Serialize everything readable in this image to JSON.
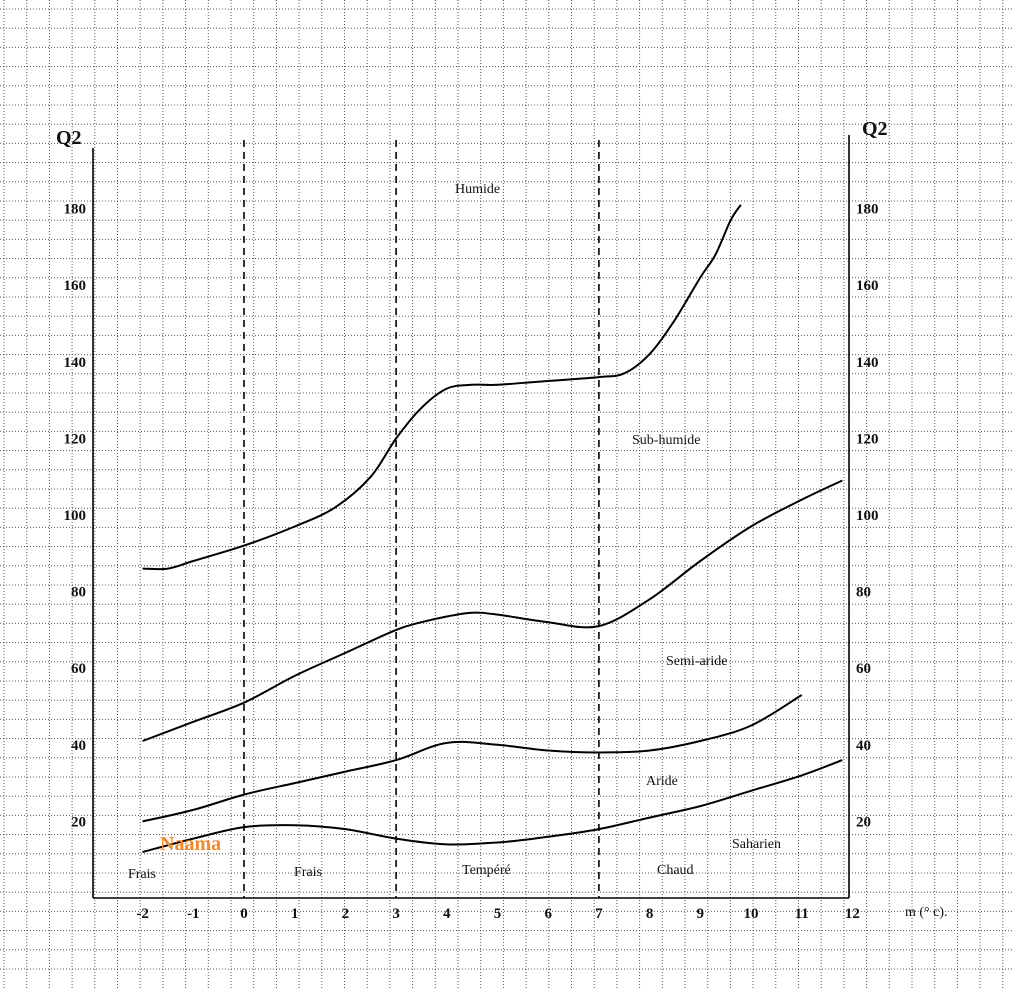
{
  "chart_data": {
    "type": "line",
    "title": "",
    "ylabel_left": "Q2",
    "ylabel_right": "Q2",
    "xlabel": "m (° c).",
    "xlim": [
      -2.5,
      12.2
    ],
    "ylim": [
      0,
      200
    ],
    "x_ticks": [
      "-2",
      "-1",
      "0",
      "1",
      "2",
      "3",
      "4",
      "5",
      "6",
      "7",
      "8",
      "9",
      "10",
      "11",
      "12"
    ],
    "y_ticks_left": [
      "20",
      "40",
      "60",
      "80",
      "100",
      "120",
      "140",
      "160",
      "180"
    ],
    "y_ticks_right": [
      "20",
      "40",
      "60",
      "80",
      "100",
      "120",
      "140",
      "160",
      "180"
    ],
    "boundary_lines_x": [
      0,
      3,
      7
    ],
    "series": [
      {
        "name": "",
        "x": [
          -2,
          -1.5,
          -1,
          0,
          1,
          1.8,
          2.5,
          3,
          3.5,
          4,
          4.5,
          5,
          6,
          7,
          7.5,
          8,
          8.5,
          9,
          9.3,
          9.6,
          9.8
        ],
        "y": [
          86,
          86,
          88,
          92,
          97,
          102,
          110,
          120,
          128,
          133,
          134,
          134,
          135,
          136,
          137,
          142,
          151,
          162,
          168,
          177,
          181
        ]
      },
      {
        "name": "",
        "x": [
          -2,
          -1,
          0,
          1,
          2,
          3,
          3.5,
          4,
          4.5,
          5,
          6,
          7,
          8,
          9,
          10,
          11,
          11.8
        ],
        "y": [
          41,
          46,
          51,
          58,
          64,
          70,
          72,
          73.5,
          74.5,
          74,
          72,
          71,
          78,
          88,
          97,
          104,
          109
        ]
      },
      {
        "name": "",
        "x": [
          -2,
          -1,
          0,
          1,
          2,
          3,
          4,
          5,
          6,
          7,
          8,
          9,
          10,
          11
        ],
        "y": [
          20,
          23,
          27,
          30,
          33,
          36,
          40.5,
          40,
          38.5,
          38,
          38.5,
          41,
          45,
          53
        ]
      },
      {
        "name": "",
        "x": [
          -2,
          -1,
          0,
          1,
          2,
          3,
          4,
          5,
          6,
          7,
          8,
          9,
          10,
          11,
          11.8
        ],
        "y": [
          12,
          15.5,
          18.5,
          19,
          18,
          15.5,
          14,
          14.5,
          16,
          18,
          21,
          24,
          28,
          32,
          36
        ]
      }
    ],
    "region_labels": [
      "Humide",
      "Sub-humide",
      "Semi-aride",
      "Aride",
      "Saharien"
    ],
    "zone_labels": [
      "Frais",
      "Frais",
      "Tempéré",
      "Chaud"
    ],
    "station_label": "Naama",
    "station_point": [
      0.2,
      14
    ],
    "colors": {
      "station": "#f4892a",
      "lines": "#000000",
      "grid": "#555555"
    }
  }
}
